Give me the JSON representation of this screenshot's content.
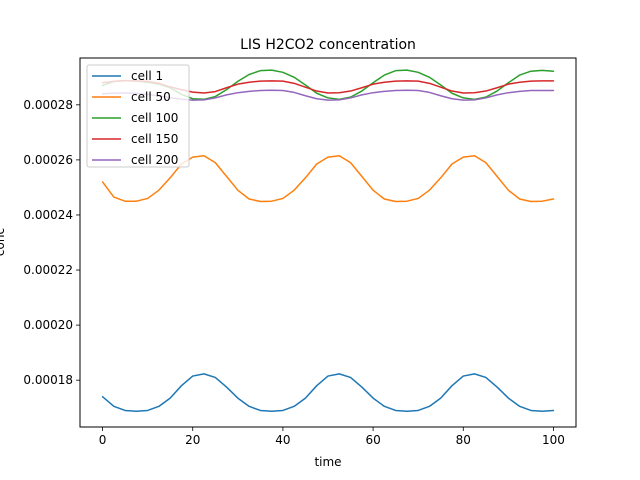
{
  "chart_data": {
    "type": "line",
    "title": "LIS H2CO2 concentration",
    "xlabel": "time",
    "ylabel": "conc",
    "xlim": [
      -5,
      105
    ],
    "ylim": [
      0.000163,
      0.000297
    ],
    "xticks": [
      0,
      20,
      40,
      60,
      80,
      100
    ],
    "xtick_labels": [
      "0",
      "20",
      "40",
      "60",
      "80",
      "100"
    ],
    "yticks": [
      0.00018,
      0.0002,
      0.00022,
      0.00024,
      0.00026,
      0.00028
    ],
    "ytick_labels": [
      "0.00018",
      "0.00020",
      "0.00022",
      "0.00024",
      "0.00026",
      "0.00028"
    ],
    "grid": false,
    "legend_position": "top-left",
    "x": [
      0,
      2.5,
      5,
      7.5,
      10,
      12.5,
      15,
      17.5,
      20,
      22.5,
      25,
      27.5,
      30,
      32.5,
      35,
      37.5,
      40,
      42.5,
      45,
      47.5,
      50,
      52.5,
      55,
      57.5,
      60,
      62.5,
      65,
      67.5,
      70,
      72.5,
      75,
      77.5,
      80,
      82.5,
      85,
      87.5,
      90,
      92.5,
      95,
      97.5,
      100
    ],
    "series": [
      {
        "name": "cell 1",
        "color": "#1f77b4",
        "values": [
          0.000174,
          0.0001705,
          0.000169,
          0.0001687,
          0.000169,
          0.0001705,
          0.0001735,
          0.000178,
          0.0001815,
          0.0001823,
          0.000181,
          0.0001775,
          0.0001735,
          0.0001705,
          0.000169,
          0.0001687,
          0.000169,
          0.0001705,
          0.0001735,
          0.000178,
          0.0001815,
          0.0001823,
          0.000181,
          0.0001775,
          0.0001735,
          0.0001705,
          0.000169,
          0.0001687,
          0.000169,
          0.0001705,
          0.0001735,
          0.000178,
          0.0001815,
          0.0001823,
          0.000181,
          0.0001775,
          0.0001735,
          0.0001705,
          0.000169,
          0.0001687,
          0.000169
        ]
      },
      {
        "name": "cell 50",
        "color": "#ff7f0e",
        "values": [
          0.000252,
          0.0002465,
          0.000245,
          0.000245,
          0.000246,
          0.000249,
          0.0002535,
          0.0002585,
          0.000261,
          0.0002615,
          0.000259,
          0.000254,
          0.000249,
          0.0002458,
          0.0002449,
          0.000245,
          0.000246,
          0.000249,
          0.0002535,
          0.0002585,
          0.000261,
          0.0002615,
          0.000259,
          0.000254,
          0.000249,
          0.0002458,
          0.0002449,
          0.000245,
          0.000246,
          0.000249,
          0.0002535,
          0.0002585,
          0.000261,
          0.0002615,
          0.000259,
          0.000254,
          0.000249,
          0.0002458,
          0.0002449,
          0.000245,
          0.0002458
        ]
      },
      {
        "name": "cell 100",
        "color": "#2ca02c",
        "values": [
          0.000287,
          0.0002885,
          0.0002888,
          0.0002886,
          0.0002882,
          0.0002875,
          0.0002862,
          0.0002838,
          0.0002822,
          0.000282,
          0.000283,
          0.0002855,
          0.0002885,
          0.000291,
          0.0002924,
          0.0002926,
          0.0002918,
          0.00029,
          0.0002872,
          0.0002842,
          0.0002825,
          0.000282,
          0.0002828,
          0.000285,
          0.000288,
          0.0002908,
          0.0002924,
          0.0002926,
          0.0002918,
          0.00029,
          0.0002872,
          0.0002842,
          0.0002825,
          0.000282,
          0.0002828,
          0.000285,
          0.000288,
          0.0002908,
          0.0002922,
          0.0002925,
          0.0002922
        ]
      },
      {
        "name": "cell 150",
        "color": "#d62728",
        "values": [
          0.000288,
          0.0002885,
          0.0002888,
          0.0002887,
          0.0002885,
          0.0002878,
          0.0002865,
          0.0002855,
          0.0002846,
          0.0002843,
          0.0002848,
          0.0002862,
          0.0002875,
          0.0002882,
          0.0002886,
          0.0002887,
          0.0002886,
          0.0002878,
          0.0002864,
          0.000285,
          0.0002843,
          0.0002844,
          0.000285,
          0.0002862,
          0.0002875,
          0.0002882,
          0.0002886,
          0.0002887,
          0.0002886,
          0.0002878,
          0.0002864,
          0.000285,
          0.0002843,
          0.0002844,
          0.000285,
          0.0002862,
          0.0002875,
          0.0002882,
          0.0002886,
          0.0002887,
          0.0002887
        ]
      },
      {
        "name": "cell 200",
        "color": "#9467bd",
        "values": [
          0.000284,
          0.0002842,
          0.0002843,
          0.0002842,
          0.0002838,
          0.0002832,
          0.0002826,
          0.000282,
          0.0002817,
          0.0002818,
          0.0002825,
          0.0002836,
          0.0002844,
          0.0002849,
          0.0002852,
          0.0002853,
          0.0002852,
          0.0002845,
          0.0002833,
          0.0002822,
          0.0002817,
          0.0002818,
          0.0002825,
          0.0002836,
          0.0002844,
          0.0002849,
          0.0002852,
          0.0002853,
          0.0002852,
          0.0002845,
          0.0002833,
          0.0002822,
          0.0002817,
          0.0002818,
          0.0002825,
          0.0002836,
          0.0002844,
          0.0002849,
          0.0002852,
          0.0002852,
          0.0002852
        ]
      }
    ]
  }
}
